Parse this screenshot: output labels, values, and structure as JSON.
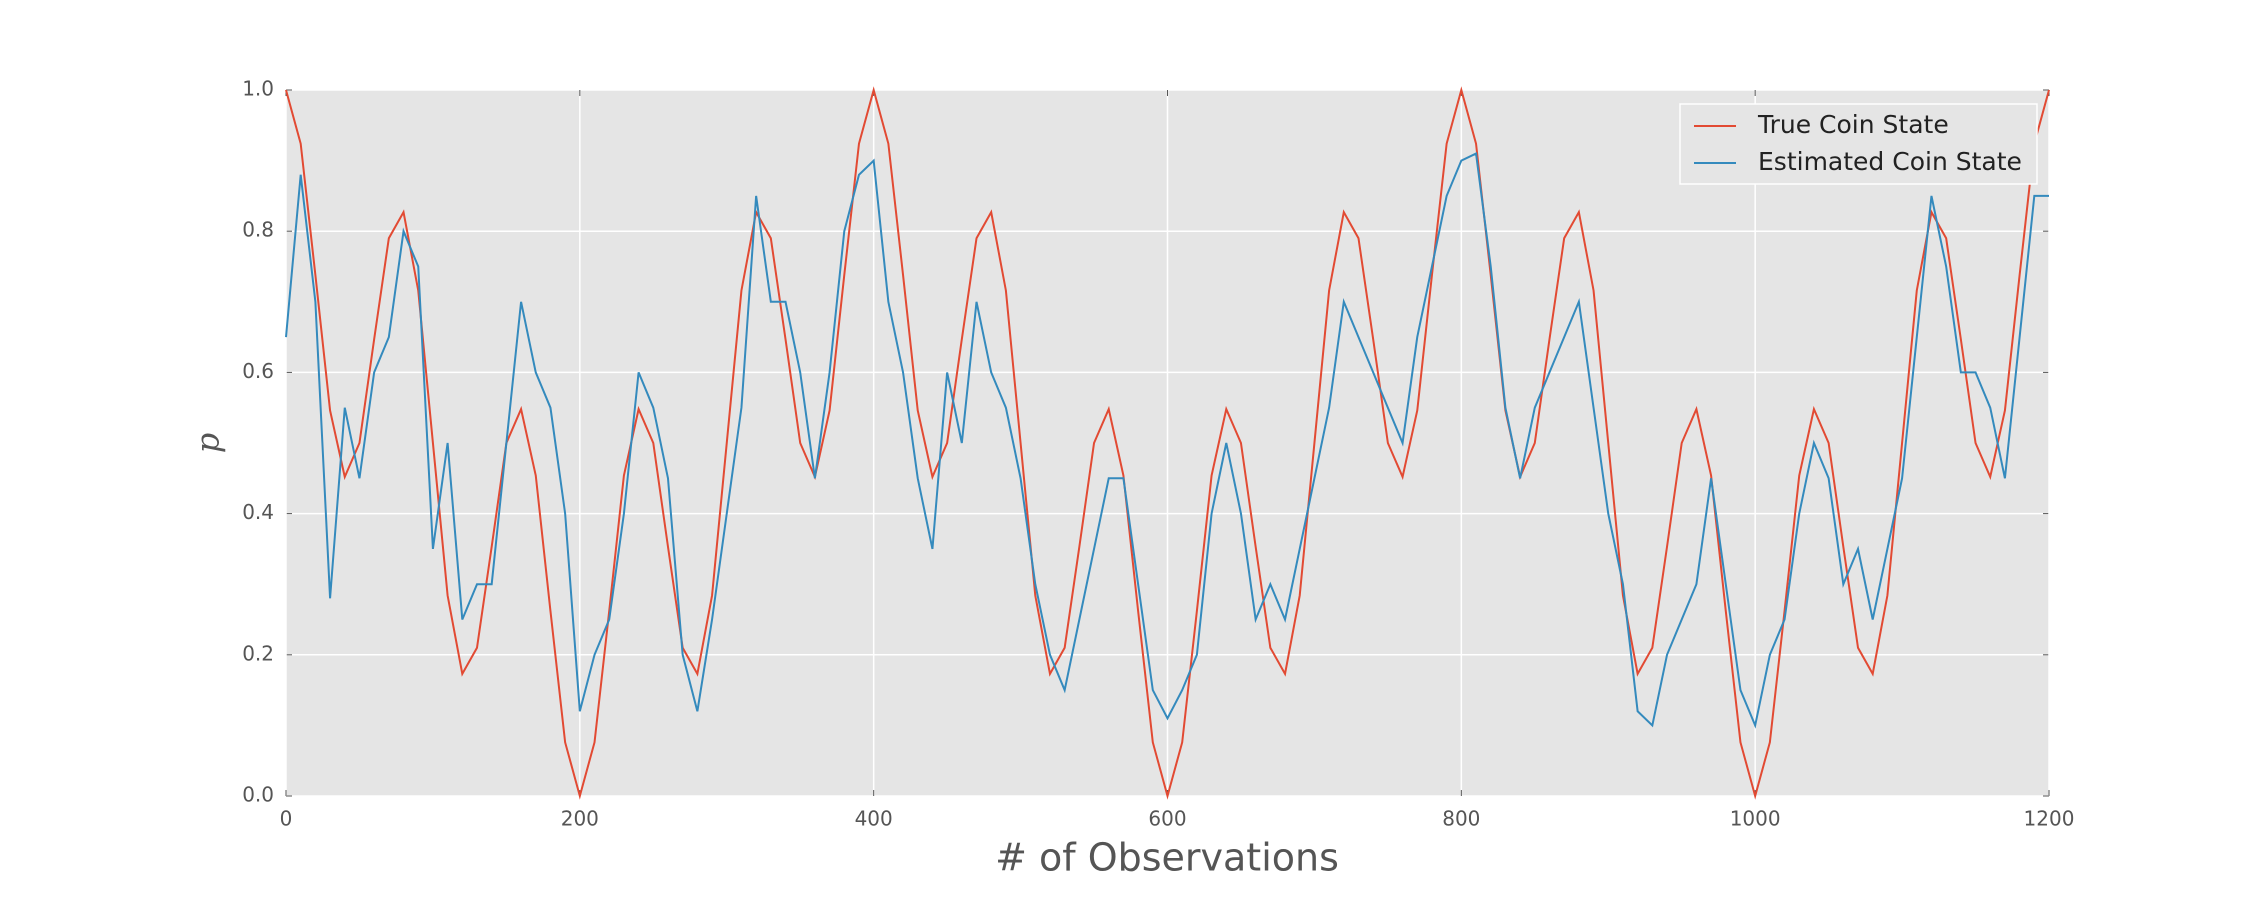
{
  "chart_data": {
    "type": "line",
    "xlabel": "# of Observations",
    "ylabel": "p",
    "x": [
      0,
      10,
      20,
      30,
      40,
      50,
      60,
      70,
      80,
      90,
      100,
      110,
      120,
      130,
      140,
      150,
      160,
      170,
      180,
      190,
      200,
      210,
      220,
      230,
      240,
      250,
      260,
      270,
      280,
      290,
      300,
      310,
      320,
      330,
      340,
      350,
      360,
      370,
      380,
      390,
      400,
      410,
      420,
      430,
      440,
      450,
      460,
      470,
      480,
      490,
      500,
      510,
      520,
      530,
      540,
      550,
      560,
      570,
      580,
      590,
      600,
      610,
      620,
      630,
      640,
      650,
      660,
      670,
      680,
      690,
      700,
      710,
      720,
      730,
      740,
      750,
      760,
      770,
      780,
      790,
      800,
      810,
      820,
      830,
      840,
      850,
      860,
      870,
      880,
      890,
      900,
      910,
      920,
      930,
      940,
      950,
      960,
      970,
      980,
      990,
      1000,
      1010,
      1020,
      1030,
      1040,
      1050,
      1060,
      1070,
      1080,
      1090,
      1100,
      1110,
      1120,
      1130,
      1140,
      1150,
      1160,
      1170,
      1180,
      1190,
      1200
    ],
    "series": [
      {
        "name": "True Coin State",
        "color": "#e24a33",
        "values": [
          1.0,
          0.924,
          0.738,
          0.546,
          0.452,
          0.5,
          0.647,
          0.79,
          0.827,
          0.716,
          0.5,
          0.284,
          0.173,
          0.21,
          0.353,
          0.5,
          0.548,
          0.454,
          0.262,
          0.076,
          0.0,
          0.076,
          0.262,
          0.454,
          0.548,
          0.5,
          0.353,
          0.21,
          0.173,
          0.284,
          0.5,
          0.716,
          0.827,
          0.79,
          0.647,
          0.5,
          0.452,
          0.546,
          0.738,
          0.924,
          1.0,
          0.924,
          0.738,
          0.546,
          0.452,
          0.5,
          0.647,
          0.79,
          0.827,
          0.716,
          0.5,
          0.284,
          0.173,
          0.21,
          0.353,
          0.5,
          0.548,
          0.454,
          0.262,
          0.076,
          0.0,
          0.076,
          0.262,
          0.454,
          0.548,
          0.5,
          0.353,
          0.21,
          0.173,
          0.284,
          0.5,
          0.716,
          0.827,
          0.79,
          0.647,
          0.5,
          0.452,
          0.546,
          0.738,
          0.924,
          1.0,
          0.924,
          0.738,
          0.546,
          0.452,
          0.5,
          0.647,
          0.79,
          0.827,
          0.716,
          0.5,
          0.284,
          0.173,
          0.21,
          0.353,
          0.5,
          0.548,
          0.454,
          0.262,
          0.076,
          0.0,
          0.076,
          0.262,
          0.454,
          0.548,
          0.5,
          0.353,
          0.21,
          0.173,
          0.284,
          0.5,
          0.716,
          0.827,
          0.79,
          0.647,
          0.5,
          0.452,
          0.546,
          0.738,
          0.924,
          1.0
        ]
      },
      {
        "name": "Estimated Coin State",
        "color": "#348abd",
        "values": [
          0.65,
          0.88,
          0.7,
          0.28,
          0.55,
          0.45,
          0.6,
          0.65,
          0.8,
          0.75,
          0.35,
          0.5,
          0.25,
          0.3,
          0.3,
          0.5,
          0.7,
          0.6,
          0.55,
          0.4,
          0.12,
          0.2,
          0.25,
          0.4,
          0.6,
          0.55,
          0.45,
          0.2,
          0.12,
          0.25,
          0.4,
          0.55,
          0.85,
          0.7,
          0.7,
          0.6,
          0.45,
          0.6,
          0.8,
          0.88,
          0.9,
          0.7,
          0.6,
          0.45,
          0.35,
          0.6,
          0.5,
          0.7,
          0.6,
          0.55,
          0.45,
          0.3,
          0.2,
          0.15,
          0.25,
          0.35,
          0.45,
          0.45,
          0.3,
          0.15,
          0.11,
          0.15,
          0.2,
          0.4,
          0.5,
          0.4,
          0.25,
          0.3,
          0.25,
          0.35,
          0.45,
          0.55,
          0.7,
          0.65,
          0.6,
          0.55,
          0.5,
          0.65,
          0.75,
          0.85,
          0.9,
          0.91,
          0.75,
          0.55,
          0.45,
          0.55,
          0.6,
          0.65,
          0.7,
          0.55,
          0.4,
          0.3,
          0.12,
          0.1,
          0.2,
          0.25,
          0.3,
          0.45,
          0.3,
          0.15,
          0.1,
          0.2,
          0.25,
          0.4,
          0.5,
          0.45,
          0.3,
          0.35,
          0.25,
          0.35,
          0.45,
          0.65,
          0.85,
          0.75,
          0.6,
          0.6,
          0.55,
          0.45,
          0.65,
          0.85,
          0.85
        ]
      }
    ],
    "xlim": [
      0,
      1200
    ],
    "xticks": [
      0,
      200,
      400,
      600,
      800,
      1000,
      1200
    ],
    "ylim": [
      0,
      1
    ],
    "yticks": [
      {
        "value": 0,
        "label": "0.0"
      },
      0.2,
      0.4,
      0.6,
      0.8,
      {
        "value": 1,
        "label": "1.0"
      }
    ],
    "grid": true,
    "legend": "upper right"
  }
}
